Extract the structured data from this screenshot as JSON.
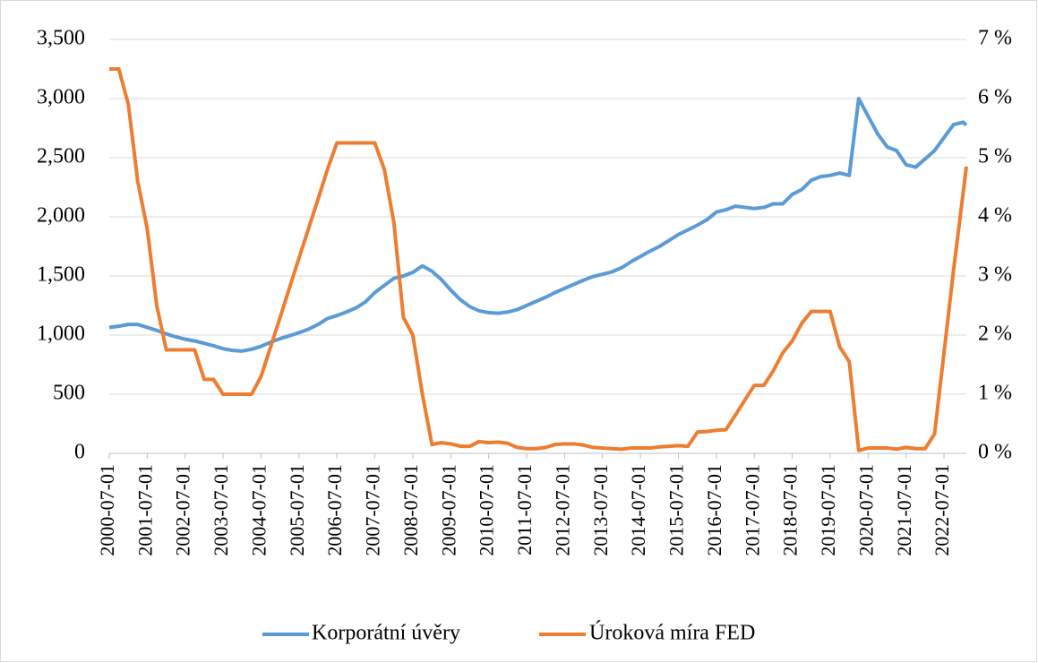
{
  "chart_data": {
    "type": "line",
    "x": [
      "2000-07-01",
      "2000-10-01",
      "2001-01-01",
      "2001-04-01",
      "2001-07-01",
      "2001-10-01",
      "2002-01-01",
      "2002-04-01",
      "2002-07-01",
      "2002-10-01",
      "2003-01-01",
      "2003-04-01",
      "2003-07-01",
      "2003-10-01",
      "2004-01-01",
      "2004-04-01",
      "2004-07-01",
      "2004-10-01",
      "2005-01-01",
      "2005-04-01",
      "2005-07-01",
      "2005-10-01",
      "2006-01-01",
      "2006-04-01",
      "2006-07-01",
      "2006-10-01",
      "2007-01-01",
      "2007-04-01",
      "2007-07-01",
      "2007-10-01",
      "2008-01-01",
      "2008-04-01",
      "2008-07-01",
      "2008-10-01",
      "2009-01-01",
      "2009-04-01",
      "2009-07-01",
      "2009-10-01",
      "2010-01-01",
      "2010-04-01",
      "2010-07-01",
      "2010-10-01",
      "2011-01-01",
      "2011-04-01",
      "2011-07-01",
      "2011-10-01",
      "2012-01-01",
      "2012-04-01",
      "2012-07-01",
      "2012-10-01",
      "2013-01-01",
      "2013-04-01",
      "2013-07-01",
      "2013-10-01",
      "2014-01-01",
      "2014-04-01",
      "2014-07-01",
      "2014-10-01",
      "2015-01-01",
      "2015-04-01",
      "2015-07-01",
      "2015-10-01",
      "2016-01-01",
      "2016-04-01",
      "2016-07-01",
      "2016-10-01",
      "2017-01-01",
      "2017-04-01",
      "2017-07-01",
      "2017-10-01",
      "2018-01-01",
      "2018-04-01",
      "2018-07-01",
      "2018-10-01",
      "2019-01-01",
      "2019-04-01",
      "2019-07-01",
      "2019-10-01",
      "2020-01-01",
      "2020-04-01",
      "2020-07-01",
      "2020-10-01",
      "2021-01-01",
      "2021-04-01",
      "2021-07-01",
      "2021-10-01",
      "2022-01-01",
      "2022-04-01",
      "2022-07-01",
      "2022-10-01",
      "2023-01-01",
      "2023-02-01"
    ],
    "series": [
      {
        "name": "Korporátní úvěry",
        "color": "#5b9bd5",
        "values": [
          1065,
          1075,
          1090,
          1090,
          1065,
          1040,
          1010,
          985,
          965,
          950,
          930,
          910,
          885,
          870,
          865,
          880,
          905,
          940,
          970,
          995,
          1020,
          1050,
          1090,
          1140,
          1165,
          1195,
          1230,
          1280,
          1360,
          1420,
          1480,
          1500,
          1530,
          1585,
          1540,
          1470,
          1380,
          1300,
          1240,
          1205,
          1190,
          1185,
          1195,
          1215,
          1250,
          1285,
          1320,
          1360,
          1395,
          1430,
          1465,
          1495,
          1515,
          1535,
          1570,
          1620,
          1665,
          1710,
          1750,
          1800,
          1850,
          1890,
          1930,
          1975,
          2040,
          2060,
          2090,
          2080,
          2070,
          2080,
          2110,
          2110,
          2190,
          2230,
          2310,
          2340,
          2350,
          2370,
          2350,
          3000,
          2850,
          2700,
          2590,
          2560,
          2440,
          2420,
          2490,
          2560,
          2670,
          2780,
          2800,
          2775
        ]
      },
      {
        "name": "Úroková míra FED",
        "color": "#ed7d31",
        "axis": "y2",
        "values": [
          6.5,
          6.5,
          5.9,
          4.6,
          3.8,
          2.5,
          1.75,
          1.75,
          1.75,
          1.75,
          1.25,
          1.25,
          1.0,
          1.0,
          1.0,
          1.0,
          1.3,
          1.8,
          2.3,
          2.8,
          3.3,
          3.8,
          4.3,
          4.8,
          5.25,
          5.25,
          5.25,
          5.25,
          5.25,
          4.8,
          3.9,
          2.3,
          2.0,
          1.0,
          0.15,
          0.18,
          0.16,
          0.12,
          0.12,
          0.2,
          0.18,
          0.19,
          0.17,
          0.1,
          0.08,
          0.08,
          0.1,
          0.15,
          0.16,
          0.16,
          0.14,
          0.1,
          0.09,
          0.08,
          0.07,
          0.09,
          0.09,
          0.09,
          0.11,
          0.12,
          0.13,
          0.12,
          0.36,
          0.37,
          0.39,
          0.4,
          0.65,
          0.9,
          1.15,
          1.15,
          1.4,
          1.7,
          1.9,
          2.2,
          2.4,
          2.4,
          2.4,
          1.8,
          1.55,
          0.05,
          0.09,
          0.09,
          0.09,
          0.07,
          0.1,
          0.08,
          0.08,
          0.33,
          1.7,
          3.1,
          4.4,
          4.85
        ]
      }
    ],
    "xlim": [
      "2000-07-01",
      "2023-02-01"
    ],
    "xticks": [
      "2000-07-01",
      "2001-07-01",
      "2002-07-01",
      "2003-07-01",
      "2004-07-01",
      "2005-07-01",
      "2006-07-01",
      "2007-07-01",
      "2008-07-01",
      "2009-07-01",
      "2010-07-01",
      "2011-07-01",
      "2012-07-01",
      "2013-07-01",
      "2014-07-01",
      "2015-07-01",
      "2016-07-01",
      "2017-07-01",
      "2018-07-01",
      "2019-07-01",
      "2020-07-01",
      "2021-07-01",
      "2022-07-01"
    ],
    "ylim": [
      0,
      3500
    ],
    "yticks": [
      0,
      500,
      {
        "value": 1000,
        "label": "1,000"
      },
      {
        "value": 1500,
        "label": "1,500"
      },
      {
        "value": 2000,
        "label": "2,000"
      },
      {
        "value": 2500,
        "label": "2,500"
      },
      {
        "value": 3000,
        "label": "3,000"
      },
      {
        "value": 3500,
        "label": "3,500"
      }
    ],
    "y2lim": [
      0,
      7
    ],
    "y2ticks": [
      {
        "value": 0,
        "label": "0 %"
      },
      {
        "value": 1,
        "label": "1 %"
      },
      {
        "value": 2,
        "label": "2 %"
      },
      {
        "value": 3,
        "label": "3 %"
      },
      {
        "value": 4,
        "label": "4 %"
      },
      {
        "value": 5,
        "label": "5 %"
      },
      {
        "value": 6,
        "label": "6 %"
      },
      {
        "value": 7,
        "label": "7 %"
      }
    ],
    "grid": true,
    "legend": "bottom"
  }
}
